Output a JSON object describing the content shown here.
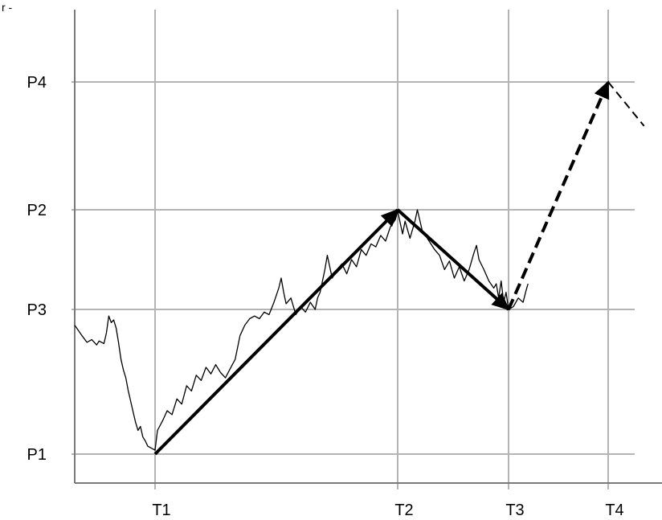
{
  "chart_data": {
    "type": "line",
    "title": "",
    "xlabel": "",
    "ylabel": "",
    "grid": true,
    "legend": "none",
    "corner_mark": "r -",
    "x_ticks": [
      {
        "label": "T1",
        "value": 1
      },
      {
        "label": "T2",
        "value": 2
      },
      {
        "label": "T3",
        "value": 2.45
      },
      {
        "label": "T4",
        "value": 2.86
      }
    ],
    "y_ticks": [
      {
        "label": "P1",
        "value": 1
      },
      {
        "label": "P3",
        "value": 2.1
      },
      {
        "label": "P2",
        "value": 2.8
      },
      {
        "label": "P4",
        "value": 3.7
      }
    ],
    "xlim": [
      0.67,
      3.1
    ],
    "ylim": [
      0.8,
      4.15
    ],
    "series": [
      {
        "kind": "price",
        "color": "#000000",
        "style": "solid-thin",
        "points": [
          [
            0.67,
            1.98
          ],
          [
            0.7,
            1.9
          ],
          [
            0.72,
            1.85
          ],
          [
            0.74,
            1.87
          ],
          [
            0.76,
            1.83
          ],
          [
            0.77,
            1.86
          ],
          [
            0.79,
            1.84
          ],
          [
            0.8,
            1.92
          ],
          [
            0.81,
            2.05
          ],
          [
            0.82,
            2.0
          ],
          [
            0.83,
            2.02
          ],
          [
            0.84,
            1.96
          ],
          [
            0.85,
            1.85
          ],
          [
            0.86,
            1.72
          ],
          [
            0.87,
            1.64
          ],
          [
            0.88,
            1.58
          ],
          [
            0.89,
            1.48
          ],
          [
            0.9,
            1.4
          ],
          [
            0.91,
            1.32
          ],
          [
            0.92,
            1.24
          ],
          [
            0.93,
            1.18
          ],
          [
            0.94,
            1.21
          ],
          [
            0.95,
            1.13
          ],
          [
            0.96,
            1.1
          ],
          [
            0.97,
            1.06
          ],
          [
            1.0,
            1.03
          ],
          [
            1.01,
            1.18
          ],
          [
            1.03,
            1.25
          ],
          [
            1.05,
            1.33
          ],
          [
            1.07,
            1.3
          ],
          [
            1.09,
            1.42
          ],
          [
            1.11,
            1.38
          ],
          [
            1.13,
            1.52
          ],
          [
            1.15,
            1.48
          ],
          [
            1.17,
            1.6
          ],
          [
            1.19,
            1.56
          ],
          [
            1.21,
            1.66
          ],
          [
            1.23,
            1.61
          ],
          [
            1.25,
            1.68
          ],
          [
            1.27,
            1.62
          ],
          [
            1.29,
            1.58
          ],
          [
            1.31,
            1.65
          ],
          [
            1.33,
            1.72
          ],
          [
            1.35,
            1.9
          ],
          [
            1.37,
            1.98
          ],
          [
            1.39,
            2.03
          ],
          [
            1.41,
            2.05
          ],
          [
            1.43,
            2.03
          ],
          [
            1.45,
            2.08
          ],
          [
            1.47,
            2.06
          ],
          [
            1.49,
            2.15
          ],
          [
            1.51,
            2.25
          ],
          [
            1.52,
            2.32
          ],
          [
            1.53,
            2.22
          ],
          [
            1.54,
            2.14
          ],
          [
            1.56,
            2.18
          ],
          [
            1.58,
            2.06
          ],
          [
            1.6,
            2.12
          ],
          [
            1.62,
            2.08
          ],
          [
            1.64,
            2.15
          ],
          [
            1.66,
            2.1
          ],
          [
            1.67,
            2.18
          ],
          [
            1.68,
            2.22
          ],
          [
            1.7,
            2.38
          ],
          [
            1.71,
            2.48
          ],
          [
            1.72,
            2.4
          ],
          [
            1.73,
            2.32
          ],
          [
            1.75,
            2.38
          ],
          [
            1.77,
            2.42
          ],
          [
            1.79,
            2.35
          ],
          [
            1.81,
            2.45
          ],
          [
            1.83,
            2.4
          ],
          [
            1.85,
            2.52
          ],
          [
            1.87,
            2.48
          ],
          [
            1.89,
            2.56
          ],
          [
            1.91,
            2.54
          ],
          [
            1.93,
            2.62
          ],
          [
            1.95,
            2.58
          ],
          [
            1.97,
            2.68
          ],
          [
            1.99,
            2.73
          ],
          [
            2.0,
            2.79
          ],
          [
            2.02,
            2.63
          ],
          [
            2.03,
            2.72
          ],
          [
            2.05,
            2.6
          ],
          [
            2.07,
            2.72
          ],
          [
            2.08,
            2.8
          ],
          [
            2.1,
            2.65
          ],
          [
            2.12,
            2.6
          ],
          [
            2.15,
            2.52
          ],
          [
            2.17,
            2.48
          ],
          [
            2.19,
            2.38
          ],
          [
            2.21,
            2.44
          ],
          [
            2.23,
            2.32
          ],
          [
            2.25,
            2.4
          ],
          [
            2.27,
            2.3
          ],
          [
            2.29,
            2.38
          ],
          [
            2.31,
            2.5
          ],
          [
            2.32,
            2.55
          ],
          [
            2.33,
            2.45
          ],
          [
            2.35,
            2.38
          ],
          [
            2.37,
            2.3
          ],
          [
            2.39,
            2.25
          ],
          [
            2.4,
            2.28
          ],
          [
            2.41,
            2.18
          ],
          [
            2.42,
            2.3
          ],
          [
            2.43,
            2.15
          ],
          [
            2.44,
            2.22
          ],
          [
            2.45,
            2.1
          ],
          [
            2.47,
            2.12
          ],
          [
            2.49,
            2.18
          ],
          [
            2.51,
            2.15
          ],
          [
            2.52,
            2.22
          ],
          [
            2.53,
            2.28
          ]
        ]
      },
      {
        "kind": "trend",
        "color": "#000000",
        "style": "solid-arrow",
        "points": [
          [
            1,
            1
          ],
          [
            2,
            2.8
          ]
        ]
      },
      {
        "kind": "trend",
        "color": "#000000",
        "style": "solid-arrow",
        "points": [
          [
            2,
            2.8
          ],
          [
            2.45,
            2.1
          ]
        ]
      },
      {
        "kind": "projection",
        "color": "#000000",
        "style": "dashed-arrow",
        "points": [
          [
            2.45,
            2.1
          ],
          [
            2.86,
            3.7
          ]
        ]
      },
      {
        "kind": "projection",
        "color": "#000000",
        "style": "dashed",
        "points": [
          [
            2.86,
            3.7
          ],
          [
            3.02,
            3.39
          ]
        ]
      }
    ],
    "colors": {
      "background": "#ffffff",
      "grid": "#b4b4b4",
      "axis": "#7a7a7a",
      "ink": "#000000"
    }
  }
}
